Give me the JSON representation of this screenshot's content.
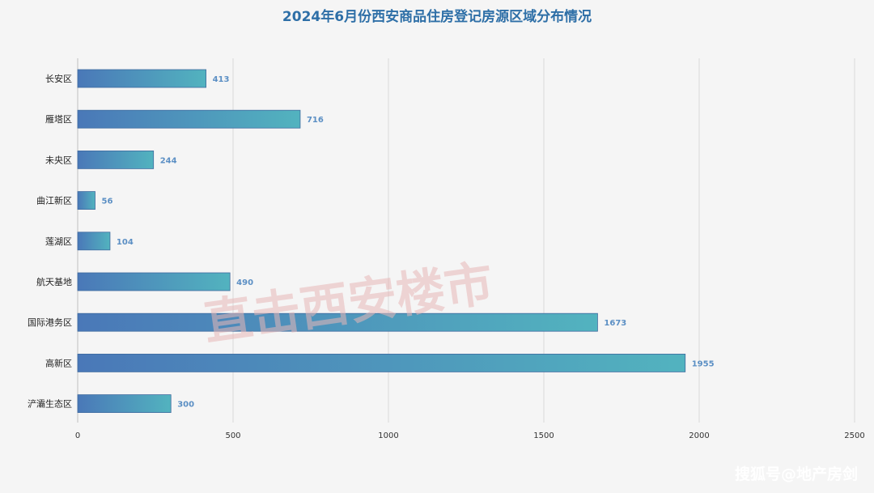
{
  "chart_data": {
    "type": "bar",
    "orientation": "horizontal",
    "title": "2024年6月份西安商品住房登记房源区域分布情况",
    "categories": [
      "长安区",
      "雁塔区",
      "未央区",
      "曲江新区",
      "莲湖区",
      "航天基地",
      "国际港务区",
      "高新区",
      "浐灞生态区"
    ],
    "values": [
      413,
      716,
      244,
      56,
      104,
      490,
      1673,
      1955,
      300
    ],
    "xlim": [
      0,
      2500
    ],
    "xticks": [
      0,
      500,
      1000,
      1500,
      2000,
      2500
    ],
    "xlabel": "",
    "ylabel": "",
    "grid": "vertical",
    "legend": "none",
    "colors": {
      "bar_start": "#4a78b8",
      "bar_end": "#52b3bf",
      "data_label": "#5b8fc4",
      "title": "#2e6fa7",
      "grid": "#d9d9d9"
    }
  },
  "watermark": "直击西安楼市",
  "credit": "搜狐号@地产房剑"
}
